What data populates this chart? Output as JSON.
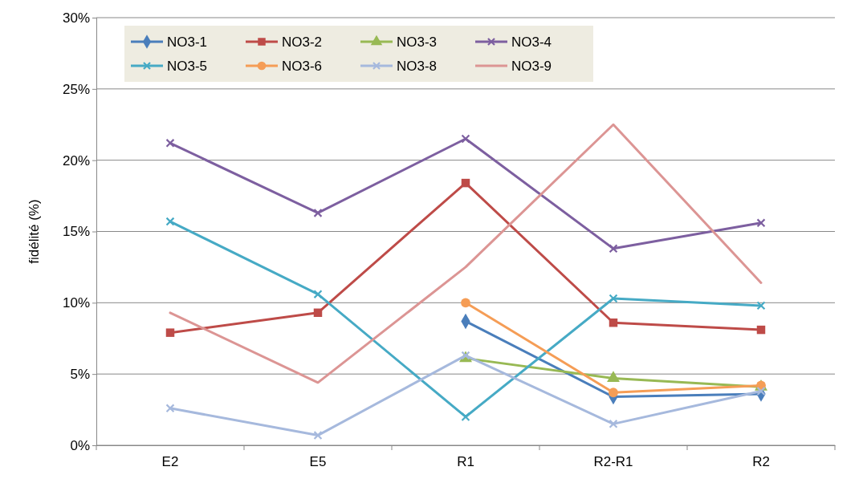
{
  "chart_data": {
    "type": "line",
    "ylabel": "fidélité (%)",
    "categories": [
      "E2",
      "E5",
      "R1",
      "R2-R1",
      "R2"
    ],
    "ylim": [
      0,
      30
    ],
    "yticks": [
      {
        "value": 0,
        "label": "0%"
      },
      {
        "value": 5,
        "label": "5%"
      },
      {
        "value": 10,
        "label": "10%"
      },
      {
        "value": 15,
        "label": "15%"
      },
      {
        "value": 20,
        "label": "20%"
      },
      {
        "value": 25,
        "label": "25%"
      },
      {
        "value": 30,
        "label": "30%"
      }
    ],
    "grid": "y",
    "legend": "top left",
    "series": [
      {
        "name": "NO3-1",
        "color": "#4a7ebb",
        "marker": "diamond",
        "values": [
          null,
          null,
          8.7,
          3.4,
          3.6
        ]
      },
      {
        "name": "NO3-2",
        "color": "#be4b48",
        "marker": "square",
        "values": [
          7.9,
          9.3,
          18.4,
          8.6,
          8.1
        ]
      },
      {
        "name": "NO3-3",
        "color": "#98b954",
        "marker": "triangle",
        "values": [
          null,
          null,
          6.1,
          4.7,
          4.1
        ]
      },
      {
        "name": "NO3-4",
        "color": "#7d5fa0",
        "marker": "cross",
        "values": [
          21.2,
          16.3,
          21.5,
          13.8,
          15.6
        ]
      },
      {
        "name": "NO3-5",
        "color": "#46aac5",
        "marker": "cross",
        "values": [
          15.7,
          10.6,
          2.0,
          10.3,
          9.8
        ]
      },
      {
        "name": "NO3-6",
        "color": "#f59d56",
        "marker": "circle",
        "values": [
          null,
          null,
          10.0,
          3.7,
          4.2
        ]
      },
      {
        "name": "NO3-8",
        "color": "#a6b9dd",
        "marker": "cross",
        "values": [
          2.6,
          0.7,
          6.3,
          1.5,
          3.8
        ]
      },
      {
        "name": "NO3-9",
        "color": "#dc9594",
        "marker": "none",
        "values": [
          9.3,
          4.4,
          12.5,
          22.5,
          11.4
        ]
      }
    ]
  }
}
